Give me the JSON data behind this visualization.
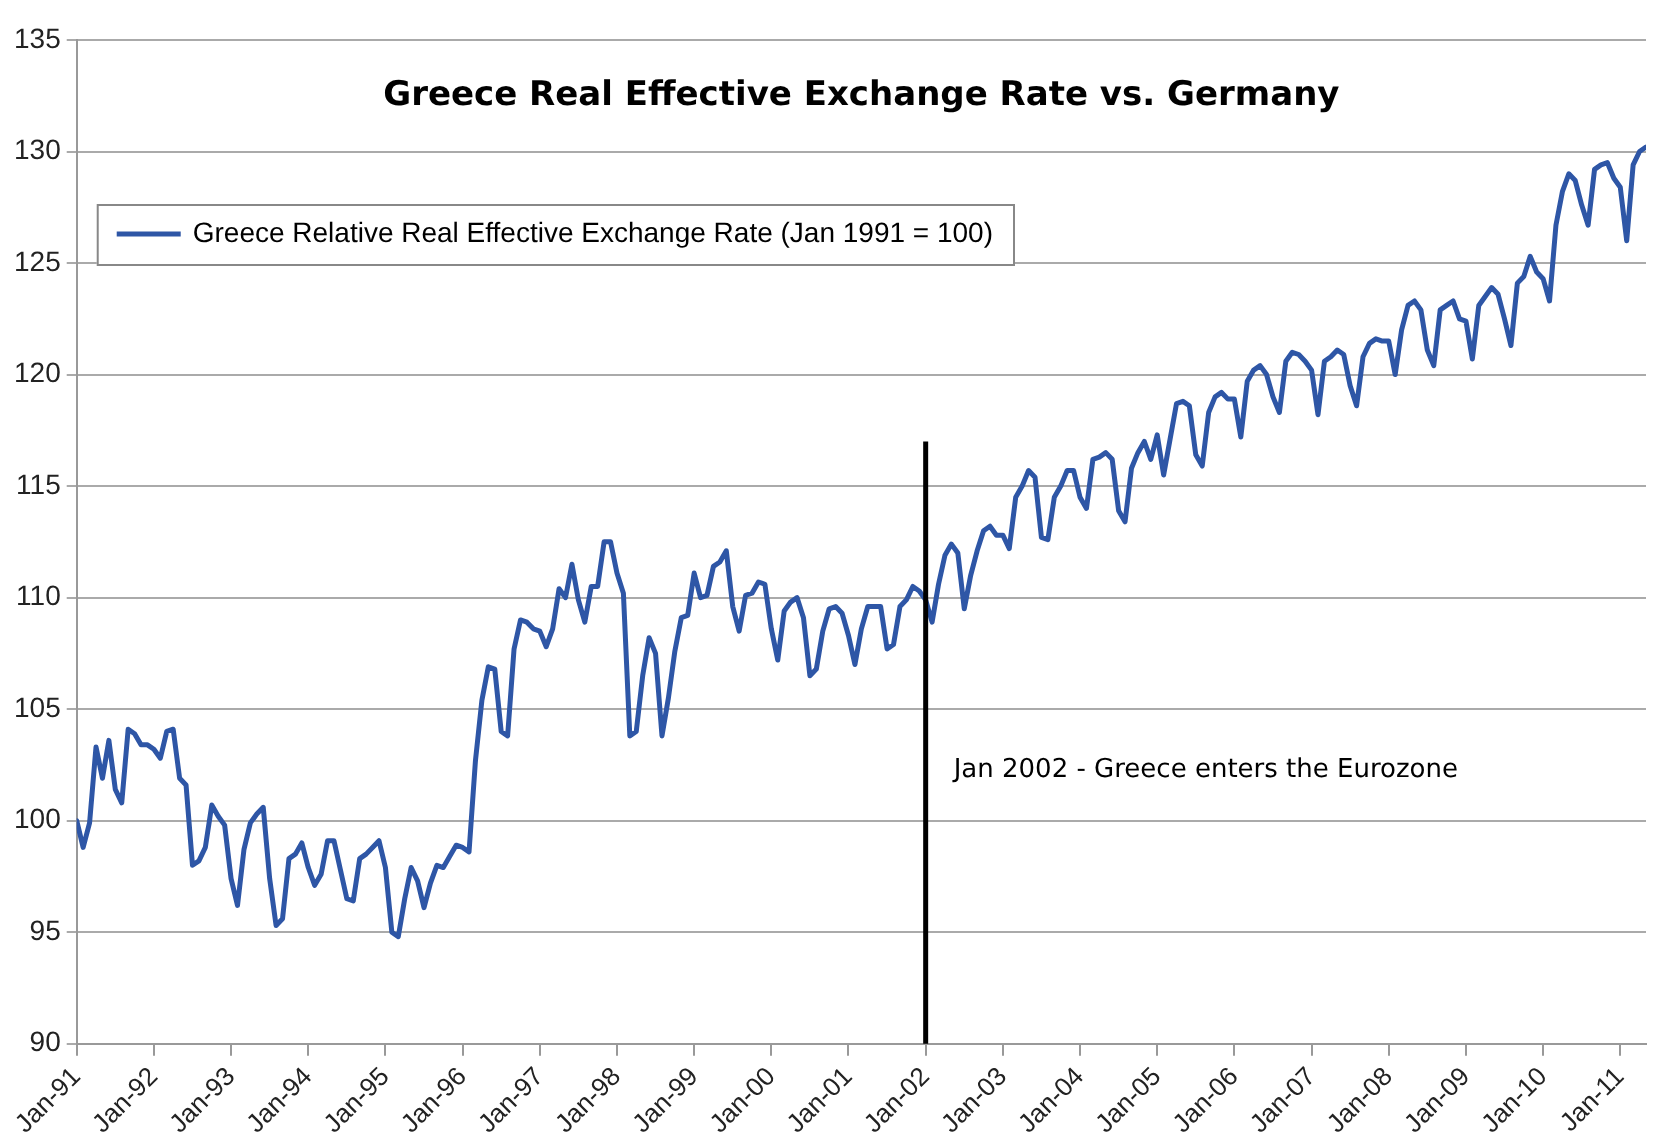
{
  "chart_data": {
    "type": "line",
    "title": "Greece Real Effective Exchange Rate vs. Germany",
    "x": [
      "1991-01",
      "1991-02",
      "1991-03",
      "1991-04",
      "1991-05",
      "1991-06",
      "1991-07",
      "1991-08",
      "1991-09",
      "1991-10",
      "1991-11",
      "1991-12",
      "1992-01",
      "1992-02",
      "1992-03",
      "1992-04",
      "1992-05",
      "1992-06",
      "1992-07",
      "1992-08",
      "1992-09",
      "1992-10",
      "1992-11",
      "1992-12",
      "1993-01",
      "1993-02",
      "1993-03",
      "1993-04",
      "1993-05",
      "1993-06",
      "1993-07",
      "1993-08",
      "1993-09",
      "1993-10",
      "1993-11",
      "1993-12",
      "1994-01",
      "1994-02",
      "1994-03",
      "1994-04",
      "1994-05",
      "1994-06",
      "1994-07",
      "1994-08",
      "1994-09",
      "1994-10",
      "1994-11",
      "1994-12",
      "1995-01",
      "1995-02",
      "1995-03",
      "1995-04",
      "1995-05",
      "1995-06",
      "1995-07",
      "1995-08",
      "1995-09",
      "1995-10",
      "1995-11",
      "1995-12",
      "1996-01",
      "1996-02",
      "1996-03",
      "1996-04",
      "1996-05",
      "1996-06",
      "1996-07",
      "1996-08",
      "1996-09",
      "1996-10",
      "1996-11",
      "1996-12",
      "1997-01",
      "1997-02",
      "1997-03",
      "1997-04",
      "1997-05",
      "1997-06",
      "1997-07",
      "1997-08",
      "1997-09",
      "1997-10",
      "1997-11",
      "1997-12",
      "1998-01",
      "1998-02",
      "1998-03",
      "1998-04",
      "1998-05",
      "1998-06",
      "1998-07",
      "1998-08",
      "1998-09",
      "1998-10",
      "1998-11",
      "1998-12",
      "1999-01",
      "1999-02",
      "1999-03",
      "1999-04",
      "1999-05",
      "1999-06",
      "1999-07",
      "1999-08",
      "1999-09",
      "1999-10",
      "1999-11",
      "1999-12",
      "2000-01",
      "2000-02",
      "2000-03",
      "2000-04",
      "2000-05",
      "2000-06",
      "2000-07",
      "2000-08",
      "2000-09",
      "2000-10",
      "2000-11",
      "2000-12",
      "2001-01",
      "2001-02",
      "2001-03",
      "2001-04",
      "2001-05",
      "2001-06",
      "2001-07",
      "2001-08",
      "2001-09",
      "2001-10",
      "2001-11",
      "2001-12",
      "2002-01",
      "2002-02",
      "2002-03",
      "2002-04",
      "2002-05",
      "2002-06",
      "2002-07",
      "2002-08",
      "2002-09",
      "2002-10",
      "2002-11",
      "2002-12",
      "2003-01",
      "2003-02",
      "2003-03",
      "2003-04",
      "2003-05",
      "2003-06",
      "2003-07",
      "2003-08",
      "2003-09",
      "2003-10",
      "2003-11",
      "2003-12",
      "2004-01",
      "2004-02",
      "2004-03",
      "2004-04",
      "2004-05",
      "2004-06",
      "2004-07",
      "2004-08",
      "2004-09",
      "2004-10",
      "2004-11",
      "2004-12",
      "2005-01",
      "2005-02",
      "2005-03",
      "2005-04",
      "2005-05",
      "2005-06",
      "2005-07",
      "2005-08",
      "2005-09",
      "2005-10",
      "2005-11",
      "2005-12",
      "2006-01",
      "2006-02",
      "2006-03",
      "2006-04",
      "2006-05",
      "2006-06",
      "2006-07",
      "2006-08",
      "2006-09",
      "2006-10",
      "2006-11",
      "2006-12",
      "2007-01",
      "2007-02",
      "2007-03",
      "2007-04",
      "2007-05",
      "2007-06",
      "2007-07",
      "2007-08",
      "2007-09",
      "2007-10",
      "2007-11",
      "2007-12",
      "2008-01",
      "2008-02",
      "2008-03",
      "2008-04",
      "2008-05",
      "2008-06",
      "2008-07",
      "2008-08",
      "2008-09",
      "2008-10",
      "2008-11",
      "2008-12",
      "2009-01",
      "2009-02",
      "2009-03",
      "2009-04",
      "2009-05",
      "2009-06",
      "2009-07",
      "2009-08",
      "2009-09",
      "2009-10",
      "2009-11",
      "2009-12",
      "2010-01",
      "2010-02",
      "2010-03",
      "2010-04",
      "2010-05",
      "2010-06",
      "2010-07",
      "2010-08",
      "2010-09",
      "2010-10",
      "2010-11",
      "2010-12",
      "2011-01",
      "2011-02",
      "2011-03",
      "2011-04",
      "2011-05"
    ],
    "series": [
      {
        "name": "Greece Relative Real Effective Exchange Rate (Jan 1991 = 100)",
        "color": "#2e56a6",
        "values": [
          100.0,
          98.8,
          99.9,
          103.3,
          101.9,
          103.6,
          101.4,
          100.8,
          104.1,
          103.9,
          103.4,
          103.4,
          103.2,
          102.8,
          104.0,
          104.1,
          101.9,
          101.6,
          98.0,
          98.2,
          98.8,
          100.7,
          100.2,
          99.8,
          97.4,
          96.2,
          98.7,
          99.9,
          100.3,
          100.6,
          97.4,
          95.3,
          95.6,
          98.3,
          98.5,
          99.0,
          97.9,
          97.1,
          97.6,
          99.1,
          99.1,
          97.8,
          96.5,
          96.4,
          98.3,
          98.5,
          98.8,
          99.1,
          97.9,
          95.0,
          94.8,
          96.5,
          97.9,
          97.3,
          96.1,
          97.2,
          98.0,
          97.9,
          98.4,
          98.9,
          98.8,
          98.6,
          102.7,
          105.4,
          106.9,
          106.8,
          104.0,
          103.8,
          107.7,
          109.0,
          108.9,
          108.6,
          108.5,
          107.8,
          108.6,
          110.4,
          110.0,
          111.5,
          109.9,
          108.9,
          110.5,
          110.5,
          112.5,
          112.5,
          111.1,
          110.2,
          103.8,
          104.0,
          106.5,
          108.2,
          107.5,
          103.8,
          105.5,
          107.6,
          109.1,
          109.2,
          111.1,
          110.0,
          110.1,
          111.4,
          111.6,
          112.1,
          109.6,
          108.5,
          110.1,
          110.2,
          110.7,
          110.6,
          108.6,
          107.2,
          109.4,
          109.8,
          110.0,
          109.1,
          106.5,
          106.8,
          108.5,
          109.5,
          109.6,
          109.3,
          108.3,
          107.0,
          108.6,
          109.6,
          109.6,
          109.6,
          107.7,
          107.9,
          109.6,
          109.9,
          110.5,
          110.3,
          109.9,
          108.9,
          110.6,
          111.9,
          112.4,
          112.0,
          109.5,
          111.0,
          112.1,
          113.0,
          113.2,
          112.8,
          112.8,
          112.2,
          114.5,
          115.0,
          115.7,
          115.4,
          112.7,
          112.6,
          114.5,
          115.0,
          115.7,
          115.7,
          114.5,
          114.0,
          116.2,
          116.3,
          116.5,
          116.2,
          113.9,
          113.4,
          115.8,
          116.5,
          117.0,
          116.2,
          117.3,
          115.5,
          117.1,
          118.7,
          118.8,
          118.6,
          116.4,
          115.9,
          118.3,
          119.0,
          119.2,
          118.9,
          118.9,
          117.2,
          119.7,
          120.2,
          120.4,
          120.0,
          119.0,
          118.3,
          120.6,
          121.0,
          120.9,
          120.6,
          120.2,
          118.2,
          120.6,
          120.8,
          121.1,
          120.9,
          119.5,
          118.6,
          120.8,
          121.4,
          121.6,
          121.5,
          121.5,
          120.0,
          122.0,
          123.1,
          123.3,
          122.9,
          121.1,
          120.4,
          122.9,
          123.1,
          123.3,
          122.5,
          122.4,
          120.7,
          123.1,
          123.5,
          123.9,
          123.6,
          122.5,
          121.3,
          124.1,
          124.4,
          125.3,
          124.6,
          124.3,
          123.3,
          126.7,
          128.2,
          129.0,
          128.7,
          127.6,
          126.7,
          129.2,
          129.4,
          129.5,
          128.8,
          128.4,
          126.0,
          129.4,
          130.0,
          130.2
        ]
      }
    ],
    "xlim": [
      "1991-01",
      "2011-05"
    ],
    "xticks": [
      {
        "value": "1991-01",
        "label": "Jan-91"
      },
      {
        "value": "1992-01",
        "label": "Jan-92"
      },
      {
        "value": "1993-01",
        "label": "Jan-93"
      },
      {
        "value": "1994-01",
        "label": "Jan-94"
      },
      {
        "value": "1995-01",
        "label": "Jan-95"
      },
      {
        "value": "1996-01",
        "label": "Jan-96"
      },
      {
        "value": "1997-01",
        "label": "Jan-97"
      },
      {
        "value": "1998-01",
        "label": "Jan-98"
      },
      {
        "value": "1999-01",
        "label": "Jan-99"
      },
      {
        "value": "2000-01",
        "label": "Jan-00"
      },
      {
        "value": "2001-01",
        "label": "Jan-01"
      },
      {
        "value": "2002-01",
        "label": "Jan-02"
      },
      {
        "value": "2003-01",
        "label": "Jan-03"
      },
      {
        "value": "2004-01",
        "label": "Jan-04"
      },
      {
        "value": "2005-01",
        "label": "Jan-05"
      },
      {
        "value": "2006-01",
        "label": "Jan-06"
      },
      {
        "value": "2007-01",
        "label": "Jan-07"
      },
      {
        "value": "2008-01",
        "label": "Jan-08"
      },
      {
        "value": "2009-01",
        "label": "Jan-09"
      },
      {
        "value": "2010-01",
        "label": "Jan-10"
      },
      {
        "value": "2011-01",
        "label": "Jan-11"
      }
    ],
    "ylim": [
      90,
      135
    ],
    "yticks": [
      90,
      95,
      100,
      105,
      110,
      115,
      120,
      125,
      130,
      135
    ],
    "ref_lines": [
      {
        "axis": "x",
        "value": "2002-01",
        "label": "Jan 2002 - Greece enters the Eurozone",
        "color": "#000000"
      }
    ],
    "grid": "y",
    "legend": "top left",
    "marker": "none",
    "line_style": "solid"
  }
}
